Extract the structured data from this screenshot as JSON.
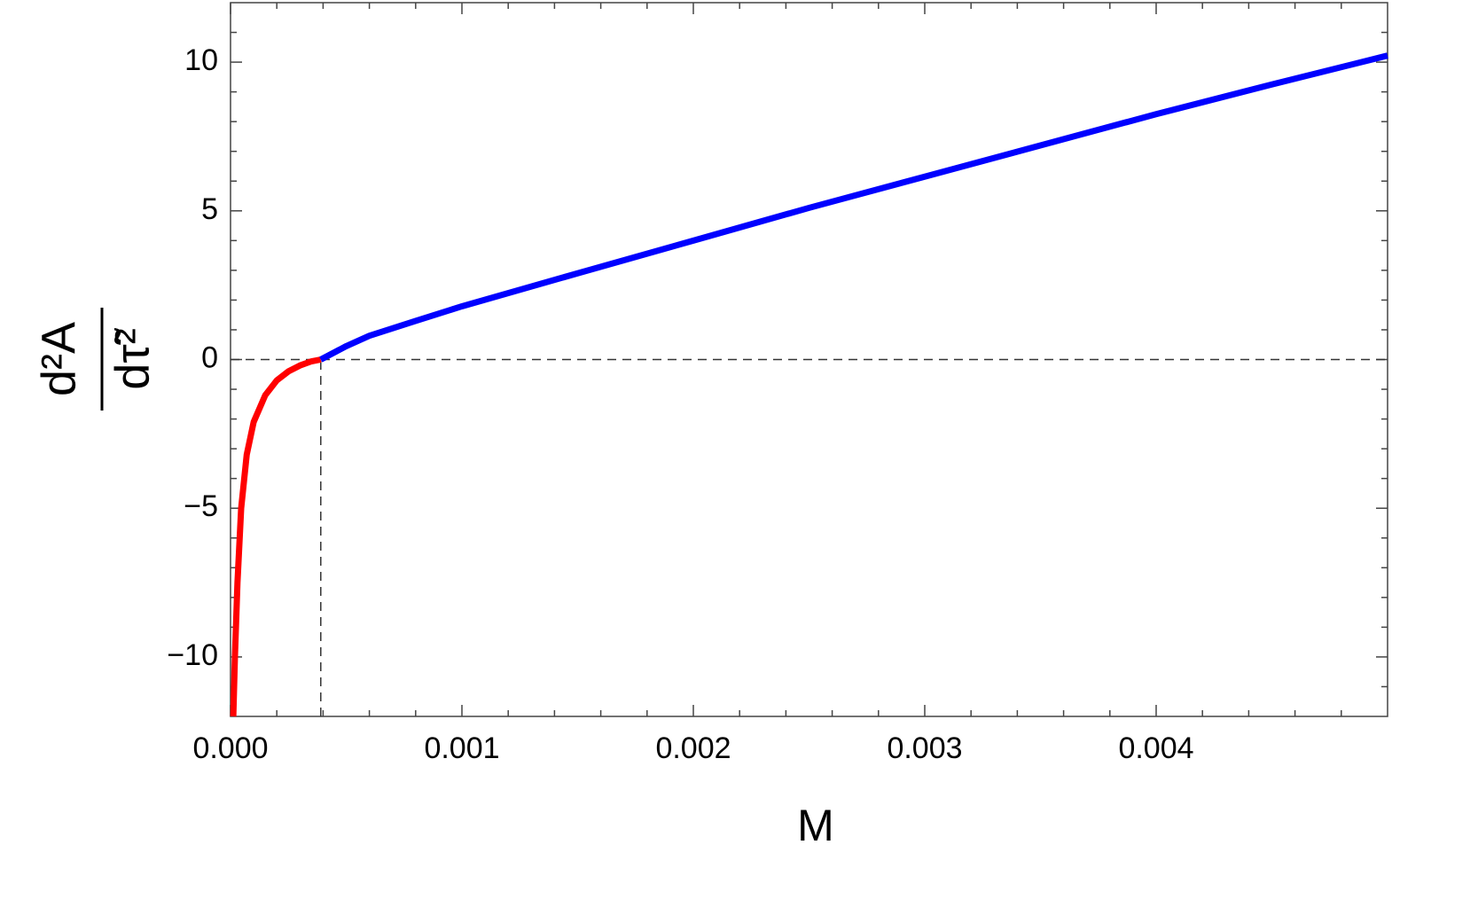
{
  "chart_data": {
    "type": "line",
    "xlabel": "M",
    "ylabel_numerator": "d²A",
    "ylabel_denominator": "dτ̃²",
    "series": [
      {
        "color": "#ff0000",
        "x": [
          1.2e-05,
          1.9e-05,
          3e-05,
          4.6e-05,
          7e-05,
          0.0001,
          0.00015,
          0.0002,
          0.00025,
          0.0003,
          0.00035,
          0.00039
        ],
        "values": [
          -12,
          -10,
          -7.5,
          -5,
          -3.2,
          -2.1,
          -1.2,
          -0.7,
          -0.4,
          -0.2,
          -0.06,
          0
        ]
      },
      {
        "color": "#0000ff",
        "x": [
          0.00039,
          0.0005,
          0.0006,
          0.0008,
          0.001,
          0.0015,
          0.002,
          0.0025,
          0.003,
          0.0035,
          0.004,
          0.0045,
          0.005
        ],
        "values": [
          0,
          0.45,
          0.8,
          1.3,
          1.79,
          2.9,
          4.0,
          5.1,
          6.15,
          7.2,
          8.25,
          9.25,
          10.22
        ]
      }
    ],
    "hline": 0,
    "vline": 0.00039,
    "xlim": [
      0,
      0.005
    ],
    "ylim": [
      -12,
      12
    ],
    "xticks": [
      {
        "value": 0,
        "label": "0.000"
      },
      0.001,
      0.002,
      0.003,
      0.004
    ],
    "yticks": [
      {
        "value": -10,
        "label": "−10"
      },
      {
        "value": -5,
        "label": "−5"
      },
      0,
      5,
      10
    ],
    "xminorticks": [
      0.0002,
      0.0004,
      0.0006,
      0.0008,
      0.0012,
      0.0014,
      0.0016,
      0.0018,
      0.0022,
      0.0024,
      0.0026,
      0.0028,
      0.0032,
      0.0034,
      0.0036,
      0.0038,
      0.0042,
      0.0044,
      0.0046,
      0.0048
    ],
    "yminorticks": [
      -11,
      -9,
      -8,
      -7,
      -6,
      -4,
      -3,
      -2,
      -1,
      1,
      2,
      3,
      4,
      6,
      7,
      8,
      9,
      11
    ]
  }
}
